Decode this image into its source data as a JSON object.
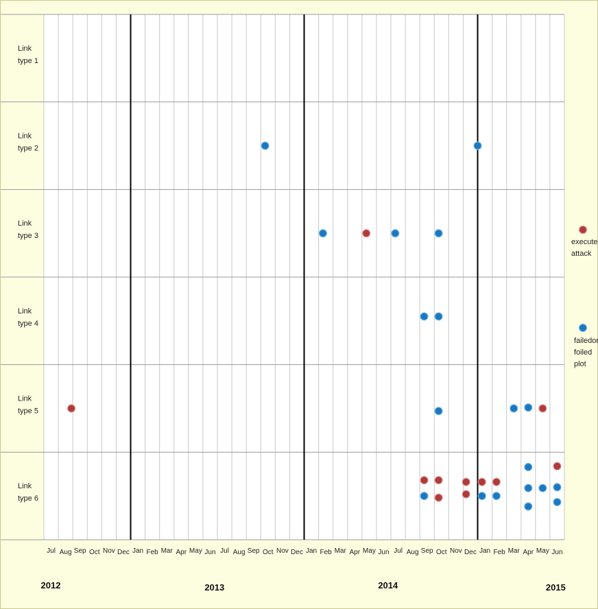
{
  "chart_data": {
    "type": "scatter",
    "rows": [
      "Link\ntype 1",
      "Link\ntype 2",
      "Link\ntype 3",
      "Link\ntype 4",
      "Link\ntype 5",
      "Link\ntype 6"
    ],
    "months": [
      "Jul",
      "Aug",
      "Sep",
      "Oct",
      "Nov",
      "Dec",
      "Jan",
      "Feb",
      "Mar",
      "Apr",
      "May",
      "Jun",
      "Jul",
      "Aug",
      "Sep",
      "Oct",
      "Nov",
      "Dec",
      "Jan",
      "Feb",
      "Mar",
      "Apr",
      "May",
      "Jun",
      "Jul",
      "Aug",
      "Sep",
      "Oct",
      "Nov",
      "Dec",
      "Jan",
      "Feb",
      "Mar",
      "Apr",
      "May",
      "Jun"
    ],
    "years": [
      {
        "label": "2012",
        "month_index": 0
      },
      {
        "label": "2013",
        "month_index": 11.8
      },
      {
        "label": "2014",
        "month_index": 23.8
      },
      {
        "label": "2015",
        "month_index": 35.4
      }
    ],
    "year_dividers": [
      6,
      18,
      30
    ],
    "series": [
      {
        "name": "executed attack",
        "color": "#b03a3a"
      },
      {
        "name": "failed or foiled plot",
        "color": "#1a78c2"
      }
    ],
    "points": [
      {
        "row": 1,
        "month": 15.3,
        "offset": 0,
        "series": 1
      },
      {
        "row": 1,
        "month": 30.0,
        "offset": 0,
        "series": 1
      },
      {
        "row": 2,
        "month": 19.3,
        "offset": 0,
        "series": 1
      },
      {
        "row": 2,
        "month": 22.3,
        "offset": 0,
        "series": 0
      },
      {
        "row": 2,
        "month": 24.3,
        "offset": 0,
        "series": 1
      },
      {
        "row": 2,
        "month": 27.3,
        "offset": 0,
        "series": 1
      },
      {
        "row": 3,
        "month": 26.3,
        "offset": -0.05,
        "series": 1
      },
      {
        "row": 3,
        "month": 27.3,
        "offset": -0.05,
        "series": 1
      },
      {
        "row": 4,
        "month": 1.9,
        "offset": 0,
        "series": 0
      },
      {
        "row": 4,
        "month": 27.3,
        "offset": 0.03,
        "series": 1
      },
      {
        "row": 4,
        "month": 32.5,
        "offset": 0,
        "series": 1
      },
      {
        "row": 4,
        "month": 33.5,
        "offset": -0.01,
        "series": 1
      },
      {
        "row": 4,
        "month": 34.5,
        "offset": 0,
        "series": 0
      },
      {
        "row": 5,
        "month": 26.3,
        "offset": -0.18,
        "series": 0
      },
      {
        "row": 5,
        "month": 27.3,
        "offset": -0.18,
        "series": 0
      },
      {
        "row": 5,
        "month": 26.3,
        "offset": 0,
        "series": 1
      },
      {
        "row": 5,
        "month": 27.3,
        "offset": 0.02,
        "series": 0
      },
      {
        "row": 5,
        "month": 29.2,
        "offset": -0.16,
        "series": 0
      },
      {
        "row": 5,
        "month": 29.2,
        "offset": -0.02,
        "series": 0
      },
      {
        "row": 5,
        "month": 30.3,
        "offset": -0.16,
        "series": 0
      },
      {
        "row": 5,
        "month": 30.3,
        "offset": 0,
        "series": 1
      },
      {
        "row": 5,
        "month": 31.3,
        "offset": -0.16,
        "series": 0
      },
      {
        "row": 5,
        "month": 31.3,
        "offset": 0,
        "series": 1
      },
      {
        "row": 5,
        "month": 33.5,
        "offset": -0.33,
        "series": 1
      },
      {
        "row": 5,
        "month": 33.5,
        "offset": -0.09,
        "series": 1
      },
      {
        "row": 5,
        "month": 33.5,
        "offset": 0.12,
        "series": 1
      },
      {
        "row": 5,
        "month": 34.5,
        "offset": -0.09,
        "series": 1
      },
      {
        "row": 5,
        "month": 35.5,
        "offset": -0.34,
        "series": 0
      },
      {
        "row": 5,
        "month": 35.5,
        "offset": -0.1,
        "series": 1
      },
      {
        "row": 5,
        "month": 35.5,
        "offset": 0.07,
        "series": 1
      }
    ]
  },
  "legend": {
    "executed": "executed\nattack",
    "failed": "failedor\nfoiled\nplot"
  }
}
